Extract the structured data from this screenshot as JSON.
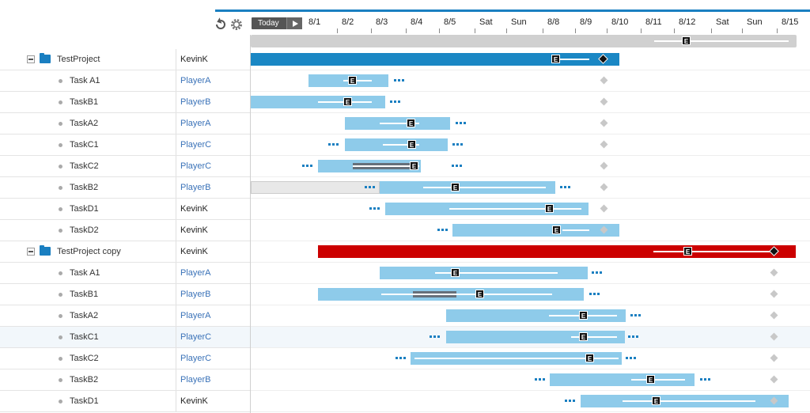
{
  "toolbar": {
    "today_label": "Today",
    "undo_icon": "undo-icon",
    "settings_icon": "gear-icon"
  },
  "timeline": {
    "dates": [
      "8/1",
      "8/2",
      "8/3",
      "8/4",
      "8/5",
      "Sat",
      "Sun",
      "8/8",
      "8/9",
      "8/10",
      "8/11",
      "8/12",
      "Sat",
      "Sun",
      "8/15"
    ]
  },
  "marker_label": "E",
  "colors": {
    "accent": "#1a7fc1",
    "group_bar": "#1a87c4",
    "task_bar": "#8ecbea",
    "critical_bar": "#cc0000",
    "owner_link": "#3a72b8"
  },
  "rows": [
    {
      "type": "group",
      "name": "TestProject",
      "owner": "KevinK",
      "owner_link": false
    },
    {
      "type": "task",
      "name": "Task A1",
      "owner": "PlayerA",
      "owner_link": true
    },
    {
      "type": "task",
      "name": "TaskB1",
      "owner": "PlayerB",
      "owner_link": true
    },
    {
      "type": "task",
      "name": "TaskA2",
      "owner": "PlayerA",
      "owner_link": true
    },
    {
      "type": "task",
      "name": "TaskC1",
      "owner": "PlayerC",
      "owner_link": true
    },
    {
      "type": "task",
      "name": "TaskC2",
      "owner": "PlayerC",
      "owner_link": true
    },
    {
      "type": "task",
      "name": "TaskB2",
      "owner": "PlayerB",
      "owner_link": true
    },
    {
      "type": "task",
      "name": "TaskD1",
      "owner": "KevinK",
      "owner_link": false
    },
    {
      "type": "task",
      "name": "TaskD2",
      "owner": "KevinK",
      "owner_link": false
    },
    {
      "type": "group",
      "name": "TestProject copy",
      "owner": "KevinK",
      "owner_link": false
    },
    {
      "type": "task",
      "name": "Task A1",
      "owner": "PlayerA",
      "owner_link": true
    },
    {
      "type": "task",
      "name": "TaskB1",
      "owner": "PlayerB",
      "owner_link": true
    },
    {
      "type": "task",
      "name": "TaskA2",
      "owner": "PlayerA",
      "owner_link": true
    },
    {
      "type": "task",
      "name": "TaskC1",
      "owner": "PlayerC",
      "owner_link": true,
      "highlighted": true
    },
    {
      "type": "task",
      "name": "TaskC2",
      "owner": "PlayerC",
      "owner_link": true
    },
    {
      "type": "task",
      "name": "TaskB2",
      "owner": "PlayerB",
      "owner_link": true
    },
    {
      "type": "task",
      "name": "TaskD1",
      "owner": "KevinK",
      "owner_link": false
    }
  ]
}
